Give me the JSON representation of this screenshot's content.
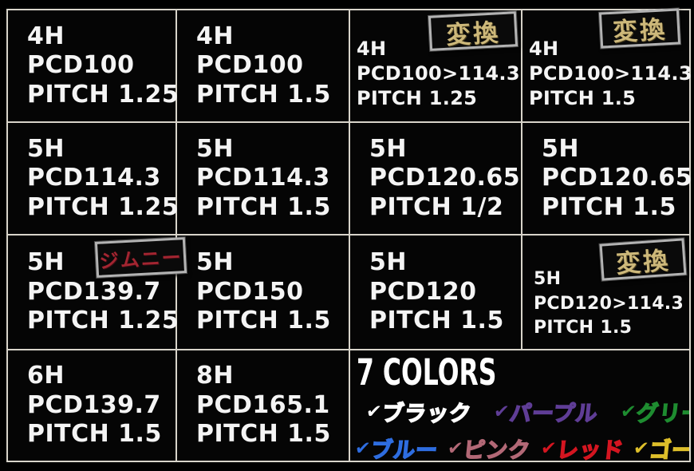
{
  "palette": {
    "background": "#000000",
    "grid_line": "#d8d4ca",
    "spec_text": "#f4f4f4",
    "badge_border": "#b3b3b3",
    "badge_gold_text": "#cdb87a",
    "badge_red_text": "#a32531"
  },
  "cells": [
    {
      "lines": [
        "4H",
        "PCD100",
        "PITCH 1.25"
      ]
    },
    {
      "lines": [
        "4H",
        "PCD100",
        "PITCH 1.5"
      ]
    },
    {
      "lines": [
        "4H",
        "PCD100>114.3",
        "PITCH 1.25"
      ],
      "badge": "変換"
    },
    {
      "lines": [
        "4H",
        "PCD100>114.3",
        "PITCH 1.5"
      ],
      "badge": "変換"
    },
    {
      "lines": [
        "5H",
        "PCD114.3",
        "PITCH 1.25"
      ]
    },
    {
      "lines": [
        "5H",
        "PCD114.3",
        "PITCH 1.5"
      ]
    },
    {
      "lines": [
        "5H",
        "PCD120.65",
        "PITCH 1/2"
      ]
    },
    {
      "lines": [
        "5H",
        "PCD120.65",
        "PITCH 1.5"
      ]
    },
    {
      "lines": [
        "5H",
        "PCD139.7",
        "PITCH 1.25"
      ],
      "badge": "ジムニー"
    },
    {
      "lines": [
        "5H",
        "PCD150",
        "PITCH 1.5"
      ]
    },
    {
      "lines": [
        "5H",
        "PCD120",
        "PITCH 1.5"
      ]
    },
    {
      "lines": [
        "5H",
        "PCD120>114.3",
        "PITCH 1.5"
      ],
      "badge": "変換"
    },
    {
      "lines": [
        "6H",
        "PCD139.7",
        "PITCH 1.5"
      ]
    },
    {
      "lines": [
        "8H",
        "PCD165.1",
        "PITCH 1.5"
      ]
    }
  ],
  "colors_panel": {
    "title": "7 COLORS",
    "check": "✔",
    "row1": [
      {
        "label": "ブラック",
        "hex": "#ffffff"
      },
      {
        "label": "パープル",
        "hex": "#5f3d96"
      },
      {
        "label": "グリーン",
        "hex": "#1e8c30"
      }
    ],
    "row2": [
      {
        "label": "ブルー",
        "hex": "#2e6de0"
      },
      {
        "label": "ピンク",
        "hex": "#b26876"
      },
      {
        "label": "レッド",
        "hex": "#d41520"
      },
      {
        "label": "ゴールド",
        "hex": "#ddbe2a"
      }
    ]
  }
}
